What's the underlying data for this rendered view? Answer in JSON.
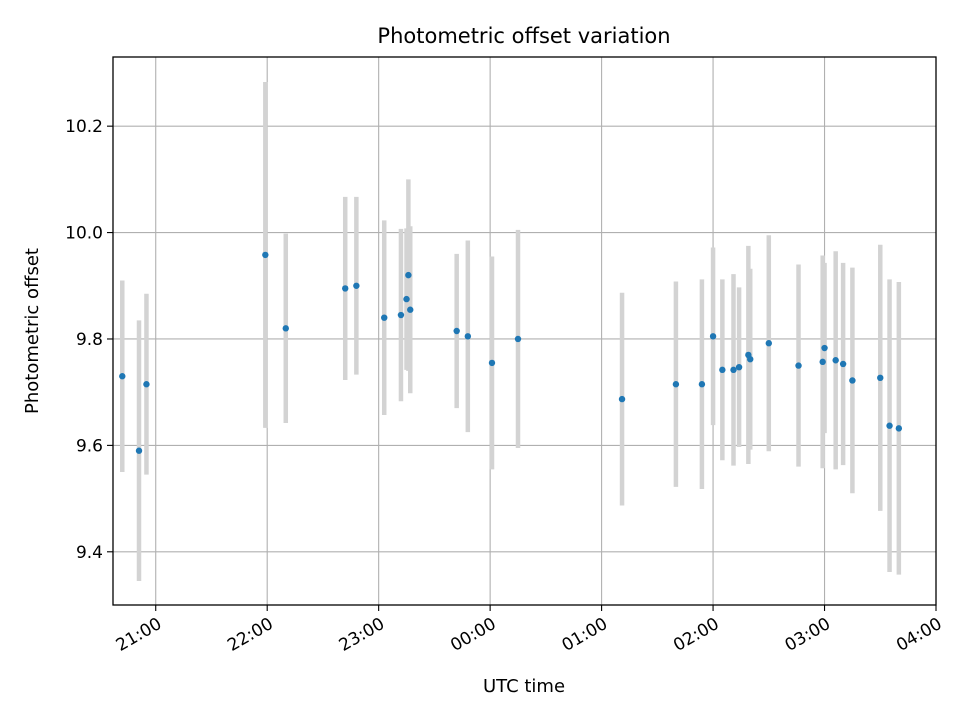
{
  "chart_data": {
    "type": "scatter",
    "title": "Photometric offset variation",
    "xlabel": "UTC time",
    "ylabel": "Photometric offset",
    "x_unit": "time of day, UTC",
    "x_tick_labels": [
      "21:00",
      "22:00",
      "23:00",
      "00:00",
      "01:00",
      "02:00",
      "03:00",
      "04:00"
    ],
    "y_ticks": [
      9.4,
      9.6,
      9.8,
      10.0,
      10.2
    ],
    "y_tick_labels": [
      "9.4",
      "9.6",
      "9.8",
      "10.0",
      "10.2"
    ],
    "xlim": [
      "20:37",
      "04:00"
    ],
    "ylim": [
      9.3,
      10.33
    ],
    "grid": true,
    "marker_color": "#1f77b4",
    "errorbar_color": "#d3d3d3",
    "points": [
      {
        "x": "20:42",
        "y": 9.73,
        "err": 0.18
      },
      {
        "x": "20:51",
        "y": 9.59,
        "err": 0.245
      },
      {
        "x": "20:55",
        "y": 9.715,
        "err": 0.17
      },
      {
        "x": "21:59",
        "y": 9.958,
        "err": 0.325
      },
      {
        "x": "22:10",
        "y": 9.82,
        "err": 0.178
      },
      {
        "x": "22:42",
        "y": 9.895,
        "err": 0.172
      },
      {
        "x": "22:48",
        "y": 9.9,
        "err": 0.167
      },
      {
        "x": "23:03",
        "y": 9.84,
        "err": 0.183
      },
      {
        "x": "23:12",
        "y": 9.845,
        "err": 0.162
      },
      {
        "x": "23:15",
        "y": 9.875,
        "err": 0.133
      },
      {
        "x": "23:16",
        "y": 9.92,
        "err": 0.18
      },
      {
        "x": "23:17",
        "y": 9.855,
        "err": 0.157
      },
      {
        "x": "23:42",
        "y": 9.815,
        "err": 0.145
      },
      {
        "x": "23:48",
        "y": 9.805,
        "err": 0.18
      },
      {
        "x": "00:01",
        "y": 9.755,
        "err": 0.2
      },
      {
        "x": "00:15",
        "y": 9.8,
        "err": 0.205
      },
      {
        "x": "01:11",
        "y": 9.687,
        "err": 0.2
      },
      {
        "x": "01:40",
        "y": 9.715,
        "err": 0.193
      },
      {
        "x": "01:54",
        "y": 9.715,
        "err": 0.197
      },
      {
        "x": "02:00",
        "y": 9.805,
        "err": 0.167
      },
      {
        "x": "02:05",
        "y": 9.742,
        "err": 0.17
      },
      {
        "x": "02:11",
        "y": 9.742,
        "err": 0.18
      },
      {
        "x": "02:14",
        "y": 9.747,
        "err": 0.15
      },
      {
        "x": "02:19",
        "y": 9.77,
        "err": 0.205
      },
      {
        "x": "02:20",
        "y": 9.762,
        "err": 0.17
      },
      {
        "x": "02:30",
        "y": 9.792,
        "err": 0.203
      },
      {
        "x": "02:46",
        "y": 9.75,
        "err": 0.19
      },
      {
        "x": "02:59",
        "y": 9.757,
        "err": 0.2
      },
      {
        "x": "03:00",
        "y": 9.783,
        "err": 0.16
      },
      {
        "x": "03:06",
        "y": 9.76,
        "err": 0.205
      },
      {
        "x": "03:10",
        "y": 9.753,
        "err": 0.19
      },
      {
        "x": "03:15",
        "y": 9.722,
        "err": 0.212
      },
      {
        "x": "03:30",
        "y": 9.727,
        "err": 0.25
      },
      {
        "x": "03:35",
        "y": 9.637,
        "err": 0.275
      },
      {
        "x": "03:40",
        "y": 9.632,
        "err": 0.275
      }
    ]
  }
}
